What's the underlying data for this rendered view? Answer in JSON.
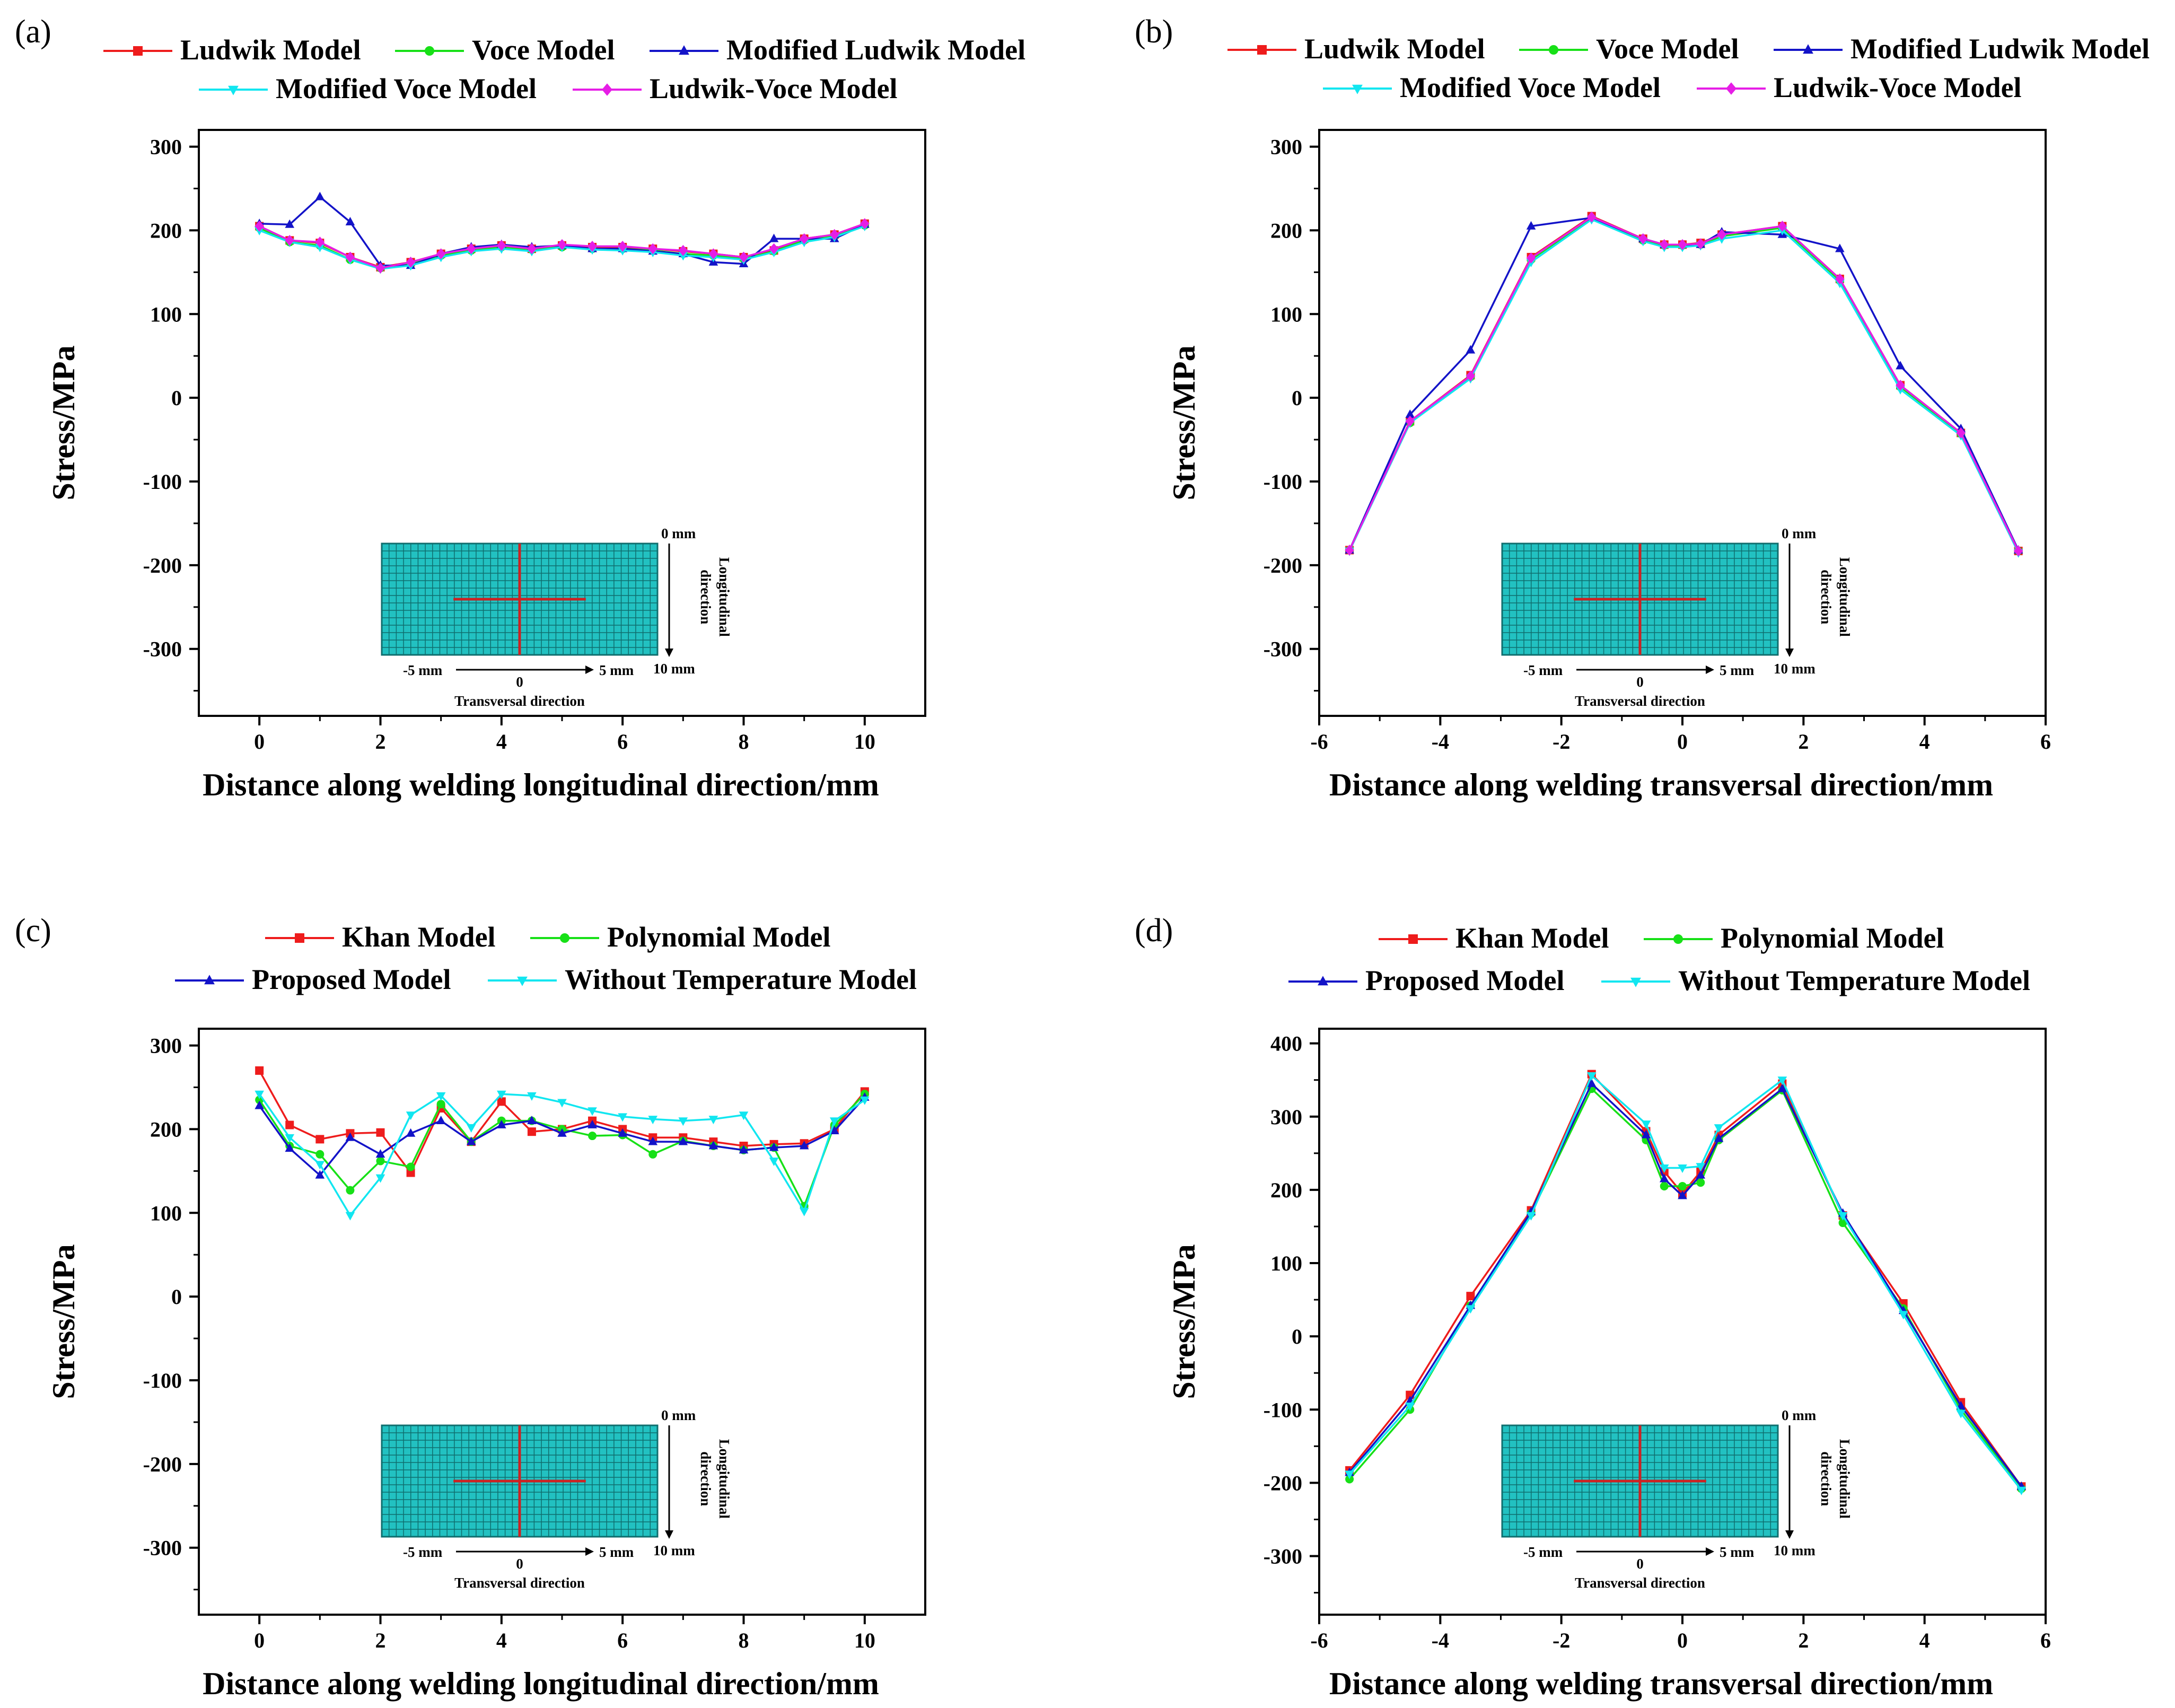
{
  "figure": {
    "panels": [
      {
        "id": "a",
        "label": "(a)"
      },
      {
        "id": "b",
        "label": "(b)"
      },
      {
        "id": "c",
        "label": "(c)"
      },
      {
        "id": "d",
        "label": "(d)"
      }
    ],
    "inset": {
      "zero_label": "0 mm",
      "end_label": "10 mm",
      "left_label": "-5 mm",
      "right_label": "5 mm",
      "center_label": "0",
      "transversal_label": "Transversal direction",
      "longitudinal_line1": "Longitudinal",
      "longitudinal_line2": "direction"
    }
  },
  "colors": {
    "red": "#ee1c1c",
    "green": "#17e017",
    "blue": "#1313c8",
    "cyan": "#11e6f0",
    "magenta": "#e61ee6",
    "inset_fill": "#22c1c1",
    "inset_grid": "#0f6e6e",
    "inset_cross": "#cc2222"
  },
  "chart_data": [
    {
      "panel": "a",
      "type": "line",
      "title": "",
      "xlabel": "Distance along welding longitudinal direction/mm",
      "ylabel": "Stress/MPa",
      "xlim": [
        -1,
        11
      ],
      "ylim": [
        -380,
        320
      ],
      "xticks": [
        0,
        2,
        4,
        6,
        8,
        10
      ],
      "yticks": [
        -300,
        -200,
        -100,
        0,
        100,
        200,
        300
      ],
      "x": [
        0,
        0.5,
        1,
        1.5,
        2,
        2.5,
        3,
        3.5,
        4,
        4.5,
        5,
        5.5,
        6,
        6.5,
        7,
        7.5,
        8,
        8.5,
        9,
        9.5,
        10
      ],
      "series": [
        {
          "name": "Ludwik Model",
          "color": "red",
          "marker": "square",
          "values": [
            205,
            188,
            185,
            168,
            156,
            162,
            172,
            178,
            182,
            178,
            182,
            180,
            180,
            178,
            175,
            172,
            168,
            176,
            190,
            195,
            208
          ]
        },
        {
          "name": "Voce Model",
          "color": "green",
          "marker": "circle",
          "values": [
            203,
            186,
            182,
            165,
            155,
            160,
            170,
            176,
            180,
            177,
            180,
            178,
            178,
            176,
            172,
            170,
            166,
            175,
            188,
            193,
            206
          ]
        },
        {
          "name": "Modified Ludwik Model",
          "color": "blue",
          "marker": "triangle",
          "values": [
            208,
            207,
            240,
            210,
            158,
            158,
            172,
            180,
            183,
            180,
            182,
            178,
            178,
            175,
            172,
            162,
            160,
            190,
            190,
            190,
            207
          ]
        },
        {
          "name": "Modified Voce Model",
          "color": "cyan",
          "marker": "triangle-down",
          "values": [
            200,
            186,
            180,
            165,
            154,
            158,
            168,
            175,
            178,
            175,
            180,
            177,
            176,
            174,
            170,
            168,
            165,
            174,
            186,
            192,
            205
          ]
        },
        {
          "name": "Ludwik-Voce Model",
          "color": "magenta",
          "marker": "diamond",
          "values": [
            205,
            188,
            186,
            168,
            155,
            162,
            172,
            178,
            182,
            178,
            183,
            181,
            181,
            178,
            176,
            172,
            168,
            178,
            190,
            195,
            208
          ]
        }
      ],
      "legend": {
        "placement": "top",
        "rows": [
          [
            "Ludwik Model",
            "Voce Model",
            "Modified Ludwik Model"
          ],
          [
            "Modified Voce Model",
            "Ludwik-Voce Model"
          ]
        ]
      }
    },
    {
      "panel": "b",
      "type": "line",
      "title": "",
      "xlabel": "Distance along welding transversal direction/mm",
      "ylabel": "Stress/MPa",
      "xlim": [
        -6,
        6
      ],
      "ylim": [
        -380,
        320
      ],
      "xticks": [
        -6,
        -4,
        -2,
        0,
        2,
        4,
        6
      ],
      "yticks": [
        -300,
        -200,
        -100,
        0,
        100,
        200,
        300
      ],
      "x": [
        -5.5,
        -4.5,
        -3.5,
        -2.5,
        -1.5,
        -0.65,
        -0.3,
        0,
        0.3,
        0.65,
        1.65,
        2.6,
        3.6,
        4.6,
        5.55
      ],
      "series": [
        {
          "name": "Ludwik Model",
          "color": "red",
          "marker": "square",
          "values": [
            -182,
            -28,
            27,
            168,
            217,
            190,
            183,
            183,
            185,
            195,
            205,
            142,
            15,
            -42,
            -183
          ]
        },
        {
          "name": "Voce Model",
          "color": "green",
          "marker": "circle",
          "values": [
            -182,
            -30,
            25,
            165,
            215,
            188,
            182,
            182,
            183,
            193,
            203,
            140,
            13,
            -43,
            -183
          ]
        },
        {
          "name": "Modified Ludwik Model",
          "color": "blue",
          "marker": "triangle",
          "values": [
            -182,
            -20,
            57,
            205,
            215,
            190,
            183,
            183,
            183,
            198,
            195,
            178,
            38,
            -37,
            -182
          ]
        },
        {
          "name": "Modified Voce Model",
          "color": "cyan",
          "marker": "triangle-down",
          "values": [
            -183,
            -30,
            23,
            162,
            213,
            187,
            180,
            180,
            182,
            190,
            200,
            137,
            10,
            -45,
            -185
          ]
        },
        {
          "name": "Ludwik-Voce Model",
          "color": "magenta",
          "marker": "diamond",
          "values": [
            -182,
            -28,
            26,
            167,
            216,
            190,
            183,
            183,
            184,
            195,
            205,
            142,
            15,
            -42,
            -183
          ]
        }
      ],
      "legend": {
        "placement": "top",
        "rows": [
          [
            "Ludwik Model",
            "Voce Model",
            "Modified Ludwik Model"
          ],
          [
            "Modified Voce Model",
            "Ludwik-Voce Model"
          ]
        ]
      }
    },
    {
      "panel": "c",
      "type": "line",
      "title": "",
      "xlabel": "Distance along welding longitudinal direction/mm",
      "ylabel": "Stress/MPa",
      "xlim": [
        -1,
        11
      ],
      "ylim": [
        -380,
        320
      ],
      "xticks": [
        0,
        2,
        4,
        6,
        8,
        10
      ],
      "yticks": [
        -300,
        -200,
        -100,
        0,
        100,
        200,
        300
      ],
      "x": [
        0,
        0.5,
        1,
        1.5,
        2,
        2.5,
        3,
        3.5,
        4,
        4.5,
        5,
        5.5,
        6,
        6.5,
        7,
        7.5,
        8,
        8.5,
        9,
        9.5,
        10
      ],
      "series": [
        {
          "name": "Khan Model",
          "color": "red",
          "marker": "square",
          "values": [
            270,
            205,
            188,
            195,
            196,
            148,
            225,
            185,
            233,
            197,
            200,
            210,
            200,
            190,
            190,
            185,
            180,
            182,
            183,
            200,
            245
          ]
        },
        {
          "name": "Polynomial Model",
          "color": "green",
          "marker": "circle",
          "values": [
            235,
            180,
            170,
            127,
            162,
            155,
            230,
            185,
            210,
            210,
            200,
            192,
            193,
            170,
            186,
            180,
            175,
            178,
            108,
            205,
            242
          ]
        },
        {
          "name": "Proposed Model",
          "color": "blue",
          "marker": "triangle",
          "values": [
            228,
            177,
            145,
            190,
            170,
            195,
            210,
            185,
            205,
            210,
            195,
            205,
            195,
            185,
            185,
            180,
            175,
            178,
            180,
            198,
            238
          ]
        },
        {
          "name": "Without Temperature Model",
          "color": "cyan",
          "marker": "triangle-down",
          "values": [
            242,
            190,
            158,
            97,
            142,
            217,
            240,
            202,
            242,
            240,
            232,
            222,
            215,
            212,
            210,
            212,
            217,
            162,
            102,
            210,
            235
          ]
        }
      ],
      "legend": {
        "placement": "top",
        "rows": [
          [
            "Khan Model",
            "Polynomial Model"
          ],
          [
            "Proposed Model",
            "Without Temperature Model"
          ]
        ]
      }
    },
    {
      "panel": "d",
      "type": "line",
      "title": "",
      "xlabel": "Distance along welding transversal direction/mm",
      "ylabel": "Stress/MPa",
      "xlim": [
        -6,
        6
      ],
      "ylim": [
        -380,
        420
      ],
      "xticks": [
        -6,
        -4,
        -2,
        0,
        2,
        4,
        6
      ],
      "yticks": [
        -300,
        -200,
        -100,
        0,
        100,
        200,
        300,
        400
      ],
      "x": [
        -5.5,
        -4.5,
        -3.5,
        -2.5,
        -1.5,
        -0.6,
        -0.3,
        0,
        0.3,
        0.6,
        1.65,
        2.65,
        3.65,
        4.6,
        5.6
      ],
      "series": [
        {
          "name": "Khan Model",
          "color": "red",
          "marker": "square",
          "values": [
            -183,
            -80,
            55,
            172,
            358,
            280,
            225,
            195,
            225,
            275,
            345,
            165,
            45,
            -90,
            -205
          ]
        },
        {
          "name": "Polynomial Model",
          "color": "green",
          "marker": "circle",
          "values": [
            -195,
            -100,
            42,
            168,
            338,
            268,
            205,
            205,
            210,
            268,
            336,
            155,
            38,
            -100,
            -208
          ]
        },
        {
          "name": "Proposed Model",
          "color": "blue",
          "marker": "triangle",
          "values": [
            -186,
            -88,
            42,
            170,
            345,
            275,
            215,
            192,
            220,
            270,
            338,
            168,
            35,
            -95,
            -205
          ]
        },
        {
          "name": "Without Temperature Model",
          "color": "cyan",
          "marker": "triangle-down",
          "values": [
            -188,
            -95,
            38,
            165,
            356,
            290,
            230,
            230,
            232,
            285,
            350,
            165,
            30,
            -105,
            -210
          ]
        }
      ],
      "legend": {
        "placement": "top",
        "rows": [
          [
            "Khan Model",
            "Polynomial Model"
          ],
          [
            "Proposed Model",
            "Without Temperature Model"
          ]
        ]
      }
    }
  ]
}
